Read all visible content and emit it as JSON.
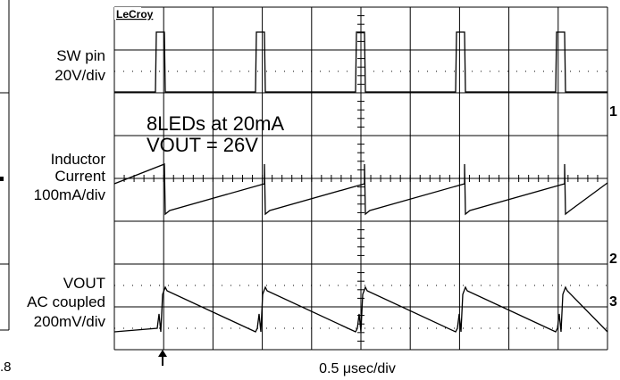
{
  "brand": "LeCroy",
  "channels": [
    {
      "lines": [
        "SW pin",
        "20V/div"
      ],
      "marker": "1"
    },
    {
      "lines": [
        "Inductor",
        "Current",
        "100mA/div"
      ],
      "marker": "2"
    },
    {
      "lines": [
        "VOUT",
        "AC coupled",
        "200mV/div"
      ],
      "marker": "3"
    }
  ],
  "annotation": [
    "8LEDs at 20mA",
    "VOUT = 26V"
  ],
  "timebase": "0.5 μsec/div",
  "left_fragment": ".8"
}
